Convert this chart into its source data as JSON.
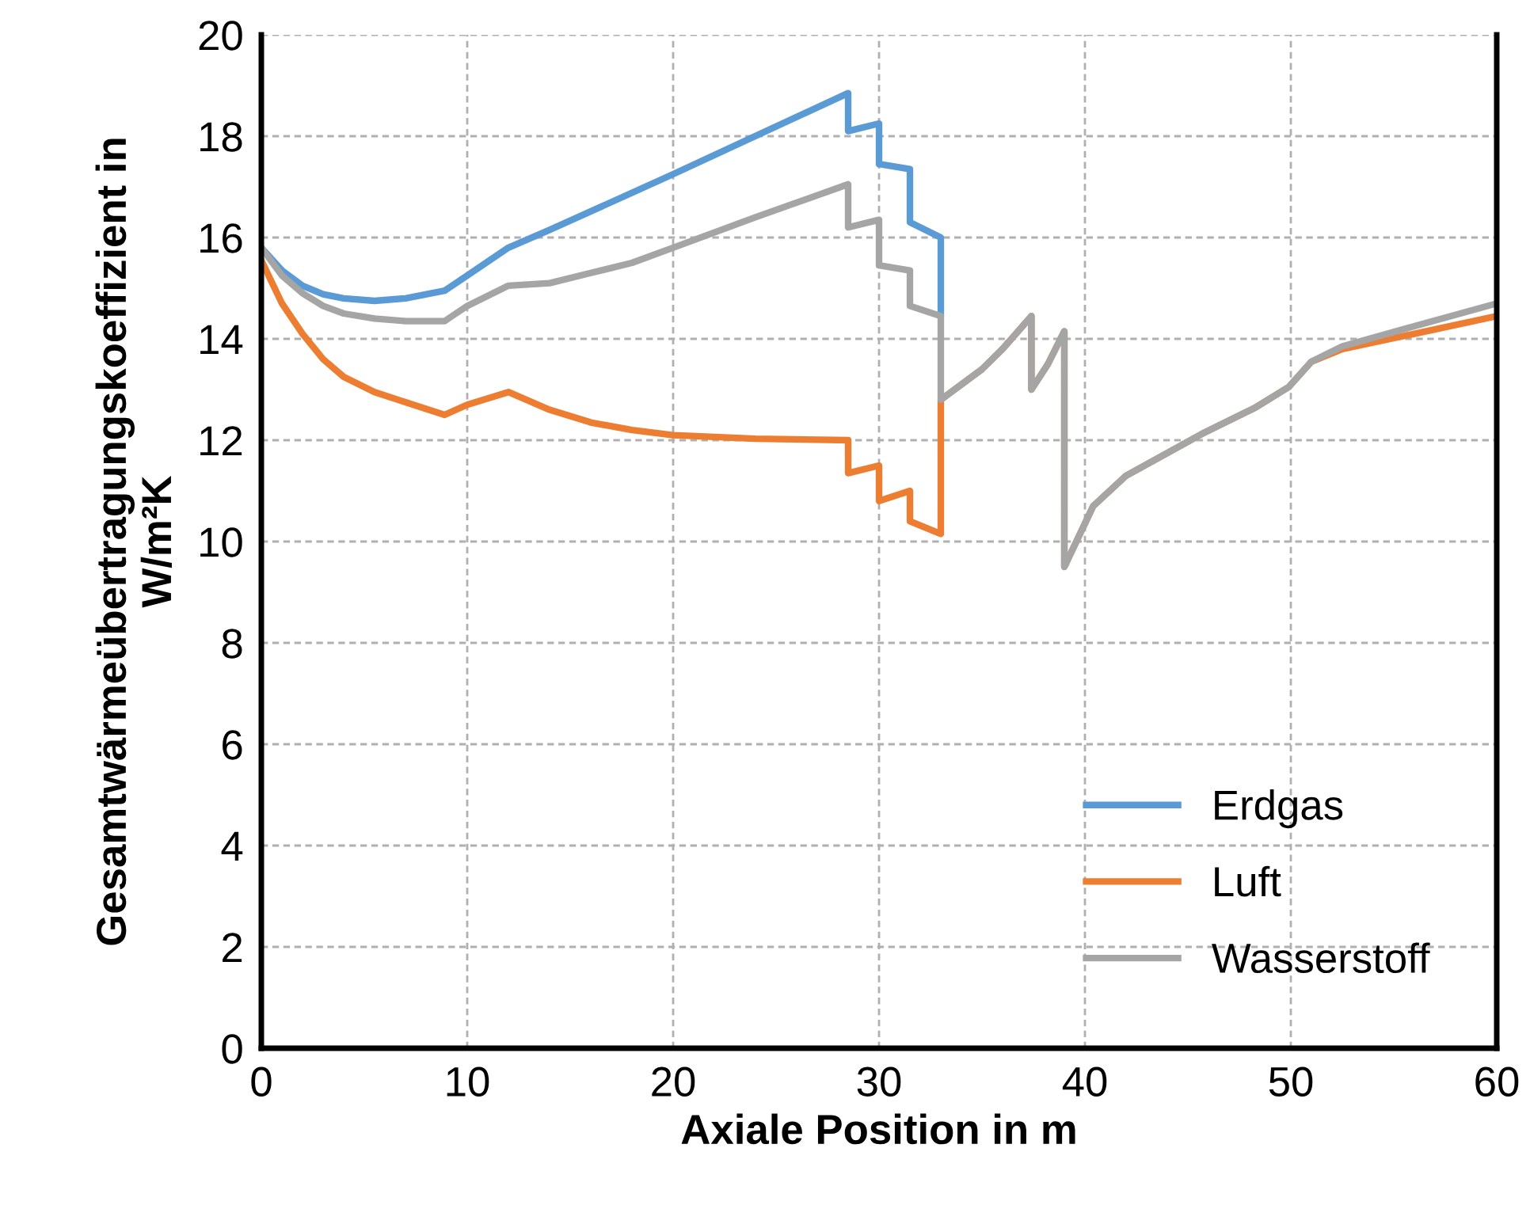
{
  "chart_data": {
    "type": "line",
    "xlabel": "Axiale Position in m",
    "ylabel": "Gesamtwärmeübertragungskoeffizient in\nW/m²K",
    "xlim": [
      0,
      60
    ],
    "xticks": [
      0,
      10,
      20,
      30,
      40,
      50,
      60
    ],
    "ylim": [
      0,
      20
    ],
    "yticks": [
      0,
      2,
      4,
      6,
      8,
      10,
      12,
      14,
      16,
      18,
      20
    ],
    "grid": true,
    "legend": "bottom right",
    "marker": "none",
    "line_style": "solid",
    "series": [
      {
        "name": "Erdgas",
        "color": "#5b9bd5",
        "x": [
          0,
          1,
          2,
          3,
          4,
          5.5,
          7,
          8.9,
          10,
          12,
          14,
          20,
          28.5,
          28.5,
          30,
          30,
          31.5,
          31.5,
          33,
          33
        ],
        "values": [
          15.8,
          15.35,
          15.05,
          14.88,
          14.8,
          14.75,
          14.8,
          14.95,
          15.25,
          15.8,
          16.15,
          17.25,
          18.85,
          18.1,
          18.25,
          17.45,
          17.35,
          16.3,
          16.0,
          14.5
        ]
      },
      {
        "name": "Luft",
        "color": "#ed7d31",
        "x": [
          0,
          1,
          2,
          3,
          4,
          5.5,
          7,
          8.9,
          10,
          12,
          14,
          16,
          18,
          20,
          24,
          28.5,
          28.5,
          30,
          30,
          31.5,
          31.5,
          33,
          33,
          34,
          35,
          36,
          37.4,
          37.4,
          38.2,
          39,
          39,
          40.4,
          42,
          45.8,
          48.3,
          49.9,
          51,
          52.5,
          56,
          60
        ],
        "values": [
          15.55,
          14.7,
          14.1,
          13.6,
          13.25,
          12.95,
          12.75,
          12.5,
          12.7,
          12.95,
          12.6,
          12.35,
          12.2,
          12.1,
          12.03,
          12.0,
          11.35,
          11.5,
          10.8,
          11.0,
          10.4,
          10.15,
          12.8,
          13.1,
          13.4,
          13.8,
          14.45,
          13.0,
          13.5,
          14.15,
          9.5,
          10.7,
          11.3,
          12.15,
          12.65,
          13.05,
          13.55,
          13.8,
          14.1,
          14.45
        ]
      },
      {
        "name": "Wasserstoff",
        "color": "#a5a5a5",
        "x": [
          0,
          1,
          2,
          3,
          4,
          5.5,
          7,
          8.9,
          10,
          12,
          14,
          16,
          18,
          20,
          24,
          28.5,
          28.5,
          30,
          30,
          31.5,
          31.5,
          33,
          33,
          34,
          35,
          36,
          37.4,
          37.4,
          38.2,
          39,
          39,
          40.4,
          42,
          45.8,
          48.3,
          49.9,
          51,
          52.5,
          56,
          60
        ],
        "values": [
          15.8,
          15.25,
          14.9,
          14.65,
          14.5,
          14.4,
          14.35,
          14.35,
          14.65,
          15.05,
          15.1,
          15.3,
          15.5,
          15.8,
          16.4,
          17.05,
          16.2,
          16.35,
          15.45,
          15.35,
          14.65,
          14.45,
          12.8,
          13.1,
          13.4,
          13.8,
          14.45,
          13.0,
          13.5,
          14.15,
          9.5,
          10.7,
          11.3,
          12.15,
          12.65,
          13.05,
          13.55,
          13.85,
          14.25,
          14.7
        ]
      }
    ]
  }
}
